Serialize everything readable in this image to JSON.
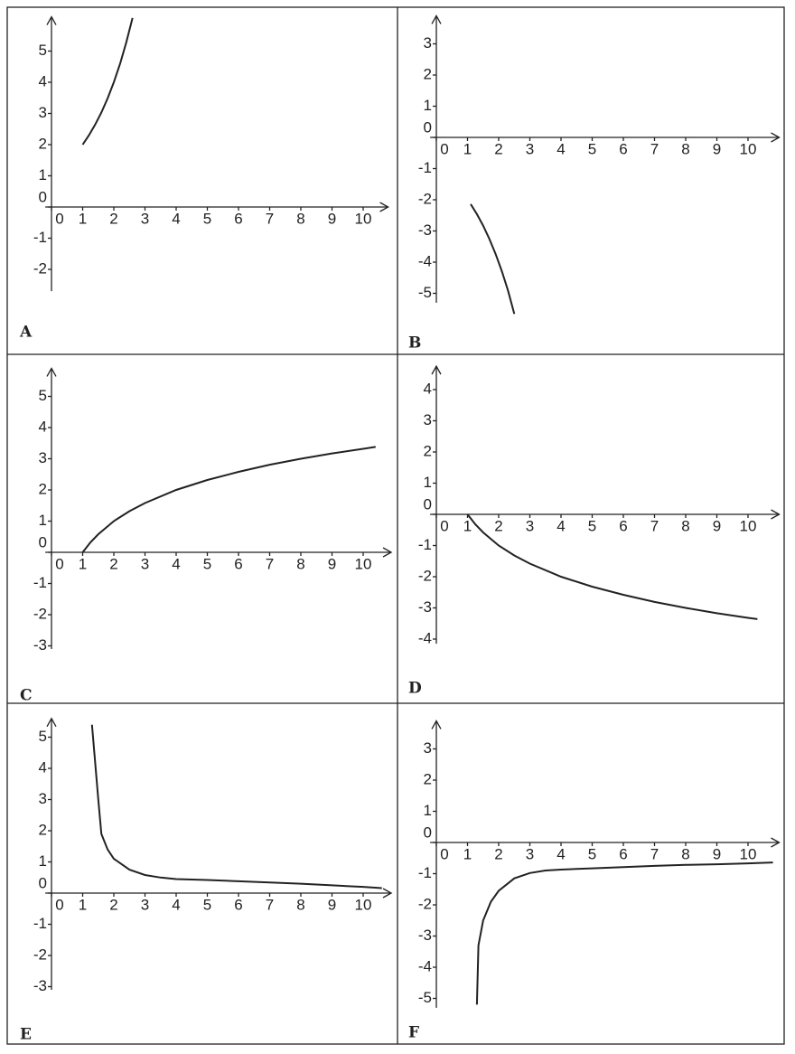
{
  "chart_data": [
    {
      "type": "line",
      "label": "A",
      "color": "#222222",
      "x": [
        1,
        1.2,
        1.4,
        1.6,
        1.8,
        2,
        2.2,
        2.4,
        2.6
      ],
      "values": [
        2,
        2.3,
        2.64,
        3.03,
        3.48,
        4,
        4.59,
        5.28,
        6.06
      ],
      "xlim": [
        -0.2,
        10.8
      ],
      "ylim": [
        -2.7,
        6.1
      ],
      "xticks": [
        0,
        1,
        2,
        3,
        4,
        5,
        6,
        7,
        8,
        9,
        10
      ],
      "yticks": [
        -2,
        -1,
        0,
        1,
        2,
        3,
        4,
        5
      ]
    },
    {
      "type": "line",
      "label": "B",
      "color": "#222222",
      "x": [
        1.1,
        1.3,
        1.5,
        1.7,
        1.9,
        2.1,
        2.3,
        2.5
      ],
      "values": [
        -2.14,
        -2.46,
        -2.83,
        -3.25,
        -3.73,
        -4.29,
        -4.92,
        -5.66
      ],
      "xlim": [
        -0.2,
        11
      ],
      "ylim": [
        -5.3,
        3.9
      ],
      "xticks": [
        0,
        1,
        2,
        3,
        4,
        5,
        6,
        7,
        8,
        9,
        10
      ],
      "yticks": [
        -5,
        -4,
        -3,
        -2,
        -1,
        0,
        1,
        2,
        3
      ]
    },
    {
      "type": "line",
      "label": "C",
      "color": "#222222",
      "x": [
        1,
        1.25,
        1.5,
        2,
        2.5,
        3,
        4,
        5,
        6,
        7,
        8,
        9,
        10,
        10.4
      ],
      "values": [
        0,
        0.32,
        0.58,
        1,
        1.32,
        1.58,
        2,
        2.32,
        2.58,
        2.81,
        3,
        3.17,
        3.32,
        3.38
      ],
      "xlim": [
        -0.2,
        10.9
      ],
      "ylim": [
        -3.1,
        5.9
      ],
      "xticks": [
        0,
        1,
        2,
        3,
        4,
        5,
        6,
        7,
        8,
        9,
        10
      ],
      "yticks": [
        -3,
        -2,
        -1,
        0,
        1,
        2,
        3,
        4,
        5
      ]
    },
    {
      "type": "line",
      "label": "D",
      "color": "#222222",
      "x": [
        1,
        1.25,
        1.5,
        2,
        2.5,
        3,
        4,
        5,
        6,
        7,
        8,
        9,
        10,
        10.3
      ],
      "values": [
        0,
        -0.32,
        -0.58,
        -1,
        -1.32,
        -1.58,
        -2,
        -2.32,
        -2.58,
        -2.81,
        -3,
        -3.17,
        -3.32,
        -3.36
      ],
      "xlim": [
        -0.2,
        11
      ],
      "ylim": [
        -4.15,
        4.75
      ],
      "xticks": [
        0,
        1,
        2,
        3,
        4,
        5,
        6,
        7,
        8,
        9,
        10
      ],
      "yticks": [
        -4,
        -3,
        -2,
        -1,
        0,
        1,
        2,
        3,
        4
      ]
    },
    {
      "type": "line",
      "label": "E",
      "color": "#222222",
      "x": [
        1.3,
        1.4,
        1.5,
        1.6,
        1.8,
        2,
        2.5,
        3,
        3.5,
        4,
        5,
        6,
        7,
        8,
        9,
        10,
        10.6
      ],
      "values": [
        5.4,
        4.2,
        3,
        1.9,
        1.4,
        1.1,
        0.75,
        0.58,
        0.5,
        0.45,
        0.42,
        0.38,
        0.34,
        0.3,
        0.25,
        0.2,
        0.16
      ],
      "xlim": [
        -0.2,
        10.9
      ],
      "ylim": [
        -3.1,
        5.6
      ],
      "xticks": [
        0,
        1,
        2,
        3,
        4,
        5,
        6,
        7,
        8,
        9,
        10
      ],
      "yticks": [
        -3,
        -2,
        -1,
        0,
        1,
        2,
        3,
        4,
        5
      ]
    },
    {
      "type": "line",
      "label": "F",
      "color": "#222222",
      "x": [
        1.3,
        1.35,
        1.5,
        1.75,
        2,
        2.5,
        3,
        3.5,
        4,
        5,
        6,
        7,
        8,
        9,
        10,
        10.8
      ],
      "values": [
        -5.2,
        -3.3,
        -2.5,
        -1.9,
        -1.55,
        -1.15,
        -0.98,
        -0.9,
        -0.87,
        -0.83,
        -0.79,
        -0.75,
        -0.72,
        -0.7,
        -0.67,
        -0.64
      ],
      "xlim": [
        -0.2,
        11
      ],
      "ylim": [
        -5.3,
        3.9
      ],
      "xticks": [
        0,
        1,
        2,
        3,
        4,
        5,
        6,
        7,
        8,
        9,
        10
      ],
      "yticks": [
        -5,
        -4,
        -3,
        -2,
        -1,
        0,
        1,
        2,
        3
      ]
    }
  ]
}
